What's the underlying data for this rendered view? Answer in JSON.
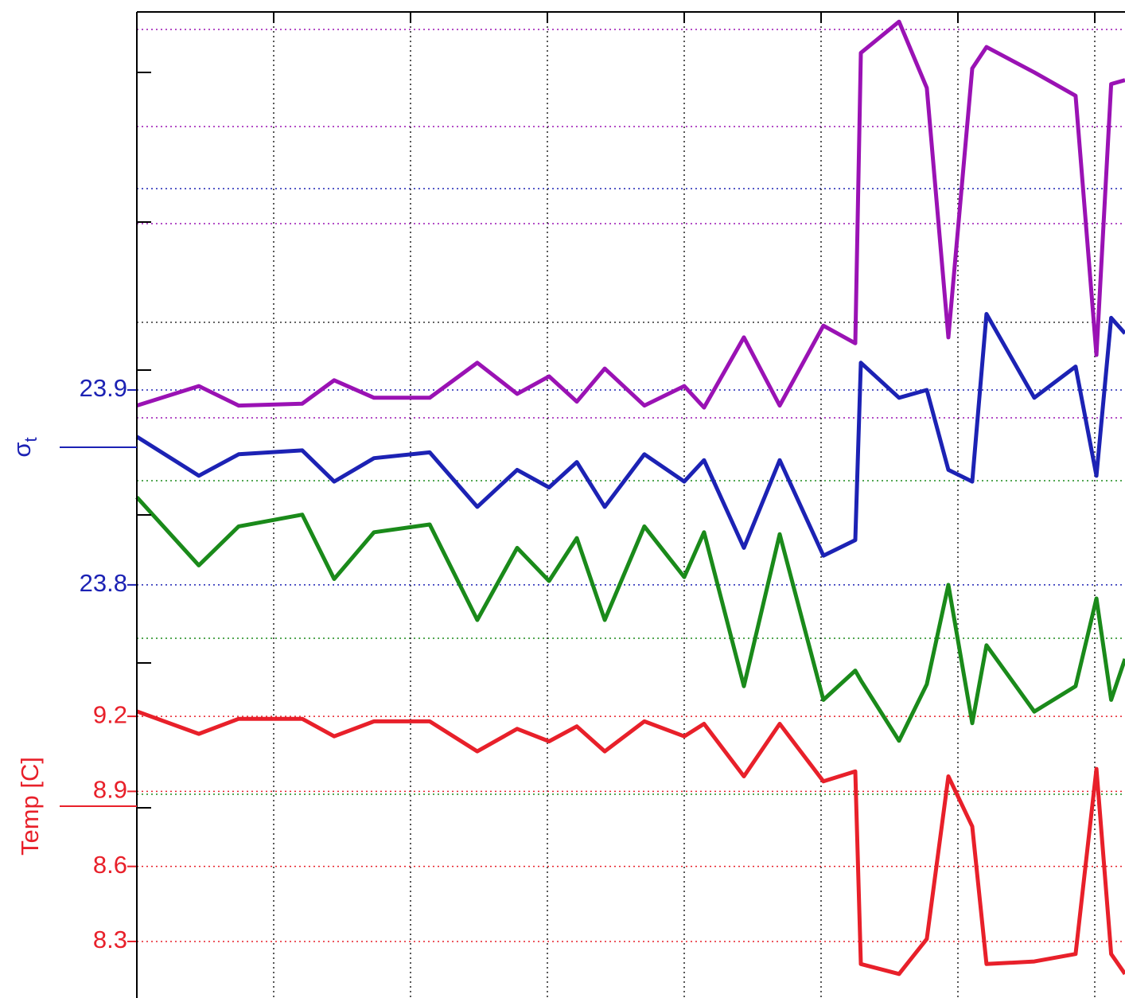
{
  "chart_data": {
    "type": "line",
    "ylabel": "σ",
    "ylabel_subscript": "t",
    "y2label": "Temp [C]",
    "x": [
      0,
      0.453,
      0.744,
      1.209,
      1.442,
      1.733,
      2.14,
      2.488,
      2.779,
      3.012,
      3.215,
      3.419,
      3.709,
      4.0,
      4.145,
      4.436,
      4.698,
      5.017,
      5.25,
      5.291,
      5.57,
      5.773,
      5.93,
      6.105,
      6.209,
      6.558,
      6.86,
      7.012,
      7.12,
      7.221
    ],
    "xlim": [
      0,
      7.221
    ],
    "xgrid": [
      1,
      2,
      3,
      4,
      5,
      6,
      7
    ],
    "ylim": [
      23.588,
      24.094
    ],
    "yticks": [
      23.8,
      23.9
    ],
    "y2lim": [
      8.074,
      12.016
    ],
    "y2ticks": [
      8.3,
      8.6,
      8.9,
      9.2
    ],
    "ycolor": "#1c22b4",
    "y2color": "#e8202a",
    "grid": true,
    "series": [
      {
        "color": "#9a12b4",
        "values": [
          23.892,
          23.902,
          23.892,
          23.893,
          23.905,
          23.896,
          23.896,
          23.914,
          23.898,
          23.907,
          23.894,
          23.911,
          23.892,
          23.902,
          23.891,
          23.927,
          23.892,
          23.933,
          23.924,
          24.073,
          24.089,
          24.055,
          23.927,
          24.065,
          24.076,
          24.063,
          24.051,
          23.918,
          24.057,
          24.059
        ]
      },
      {
        "color": "#1c22b4",
        "values": [
          23.876,
          23.856,
          23.867,
          23.869,
          23.853,
          23.865,
          23.868,
          23.84,
          23.859,
          23.85,
          23.863,
          23.84,
          23.867,
          23.853,
          23.864,
          23.819,
          23.864,
          23.815,
          23.823,
          23.914,
          23.896,
          23.9,
          23.859,
          23.853,
          23.939,
          23.896,
          23.912,
          23.856,
          23.937,
          23.929
        ]
      },
      {
        "color": "#1a8a1a",
        "values": [
          23.845,
          23.81,
          23.83,
          23.836,
          23.803,
          23.827,
          23.831,
          23.782,
          23.819,
          23.802,
          23.824,
          23.782,
          23.83,
          23.804,
          23.827,
          23.748,
          23.826,
          23.741,
          23.756,
          23.751,
          23.72,
          23.749,
          23.8,
          23.729,
          23.769,
          23.735,
          23.748,
          23.793,
          23.741,
          23.762
        ]
      },
      {
        "color": "#e8202a",
        "axis": "y2",
        "values": [
          9.22,
          9.13,
          9.19,
          9.19,
          9.12,
          9.18,
          9.18,
          9.06,
          9.15,
          9.1,
          9.16,
          9.06,
          9.18,
          9.12,
          9.17,
          8.96,
          9.17,
          8.94,
          8.98,
          8.21,
          8.17,
          8.31,
          8.96,
          8.76,
          8.21,
          8.22,
          8.25,
          8.99,
          8.25,
          8.17
        ]
      }
    ]
  }
}
